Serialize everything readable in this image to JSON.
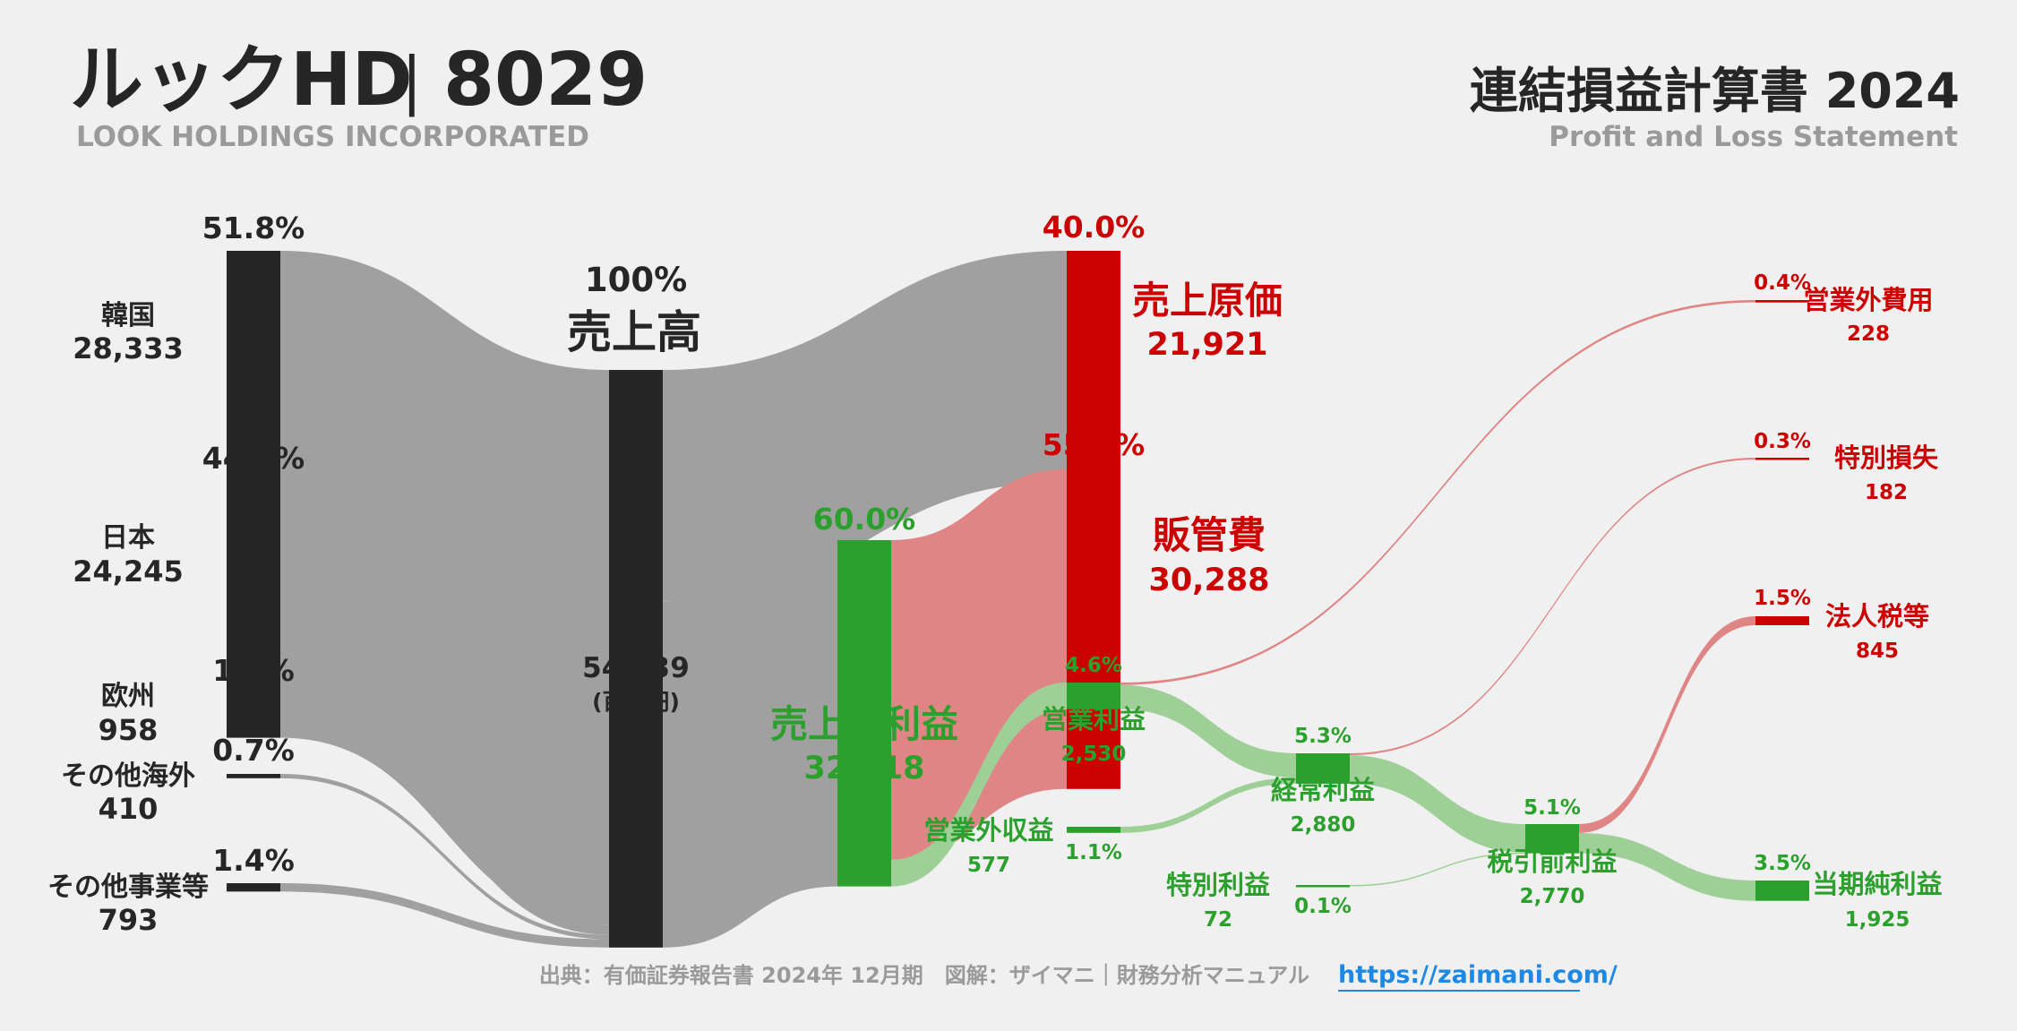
{
  "header": {
    "company_name": "ルックHD",
    "separator": "|",
    "ticker": "8029",
    "company_en": "LOOK HOLDINGS INCORPORATED",
    "statement_title": "連結損益計算書 2024",
    "statement_en": "Profit and Loss Statement"
  },
  "footer": {
    "source": "出典：有価証券報告書 2024年 12月期　図解：ザイマニ｜財務分析マニュアル",
    "link": "https://zaimani.com/"
  },
  "colors": {
    "background": "#f0f0f0",
    "dark": "#262626",
    "gray_flow": "#a0a0a0",
    "red": "#cc0000",
    "red_flow": "#e08585",
    "green": "#2ca02c",
    "green_flow": "#9dcf97",
    "link": "#1e88e5",
    "subtitle_gray": "#9a9a9a"
  },
  "chart_data": {
    "type": "sankey",
    "unit": "(百万円)",
    "nodes": [
      {
        "id": "korea",
        "label": "韓国",
        "value": 28333,
        "value_text": "28,333",
        "pct": "51.8%"
      },
      {
        "id": "japan",
        "label": "日本",
        "value": 24245,
        "value_text": "24,245",
        "pct": "44.3%"
      },
      {
        "id": "europe",
        "label": "欧州",
        "value": 958,
        "value_text": "958",
        "pct": "1.8%"
      },
      {
        "id": "other_overseas",
        "label": "その他海外",
        "value": 410,
        "value_text": "410",
        "pct": "0.7%"
      },
      {
        "id": "other_business",
        "label": "その他事業等",
        "value": 793,
        "value_text": "793",
        "pct": "1.4%"
      },
      {
        "id": "revenue",
        "label": "売上高",
        "value": 54739,
        "value_text": "54,739",
        "pct": "100%"
      },
      {
        "id": "cogs",
        "label": "売上原価",
        "value": 21921,
        "value_text": "21,921",
        "pct": "40.0%"
      },
      {
        "id": "gross_profit",
        "label": "売上総利益",
        "value": 32818,
        "value_text": "32,818",
        "pct": "60.0%"
      },
      {
        "id": "sga",
        "label": "販管費",
        "value": 30288,
        "value_text": "30,288",
        "pct": "55.3%"
      },
      {
        "id": "operating_income",
        "label": "営業利益",
        "value": 2530,
        "value_text": "2,530",
        "pct": "4.6%"
      },
      {
        "id": "non_op_income",
        "label": "営業外収益",
        "value": 577,
        "value_text": "577",
        "pct": "1.1%"
      },
      {
        "id": "non_op_expense",
        "label": "営業外費用",
        "value": 228,
        "value_text": "228",
        "pct": "0.4%"
      },
      {
        "id": "ordinary_income",
        "label": "経常利益",
        "value": 2880,
        "value_text": "2,880",
        "pct": "5.3%"
      },
      {
        "id": "extraordinary_income",
        "label": "特別利益",
        "value": 72,
        "value_text": "72",
        "pct": "0.1%"
      },
      {
        "id": "extraordinary_loss",
        "label": "特別損失",
        "value": 182,
        "value_text": "182",
        "pct": "0.3%"
      },
      {
        "id": "pretax_income",
        "label": "税引前利益",
        "value": 2770,
        "value_text": "2,770",
        "pct": "5.1%"
      },
      {
        "id": "income_taxes",
        "label": "法人税等",
        "value": 845,
        "value_text": "845",
        "pct": "1.5%"
      },
      {
        "id": "net_income",
        "label": "当期純利益",
        "value": 1925,
        "value_text": "1,925",
        "pct": "3.5%"
      }
    ],
    "links": [
      {
        "source": "korea",
        "target": "revenue",
        "value": 28333
      },
      {
        "source": "japan",
        "target": "revenue",
        "value": 24245
      },
      {
        "source": "europe",
        "target": "revenue",
        "value": 958
      },
      {
        "source": "other_overseas",
        "target": "revenue",
        "value": 410
      },
      {
        "source": "other_business",
        "target": "revenue",
        "value": 793
      },
      {
        "source": "revenue",
        "target": "cogs",
        "value": 21921
      },
      {
        "source": "revenue",
        "target": "gross_profit",
        "value": 32818
      },
      {
        "source": "gross_profit",
        "target": "sga",
        "value": 30288
      },
      {
        "source": "gross_profit",
        "target": "operating_income",
        "value": 2530
      },
      {
        "source": "operating_income",
        "target": "non_op_expense",
        "value": 228
      },
      {
        "source": "operating_income",
        "target": "ordinary_income",
        "value": 2302
      },
      {
        "source": "non_op_income",
        "target": "ordinary_income",
        "value": 577
      },
      {
        "source": "ordinary_income",
        "target": "extraordinary_loss",
        "value": 182
      },
      {
        "source": "ordinary_income",
        "target": "pretax_income",
        "value": 2698
      },
      {
        "source": "extraordinary_income",
        "target": "pretax_income",
        "value": 72
      },
      {
        "source": "pretax_income",
        "target": "income_taxes",
        "value": 845
      },
      {
        "source": "pretax_income",
        "target": "net_income",
        "value": 1925
      }
    ]
  }
}
